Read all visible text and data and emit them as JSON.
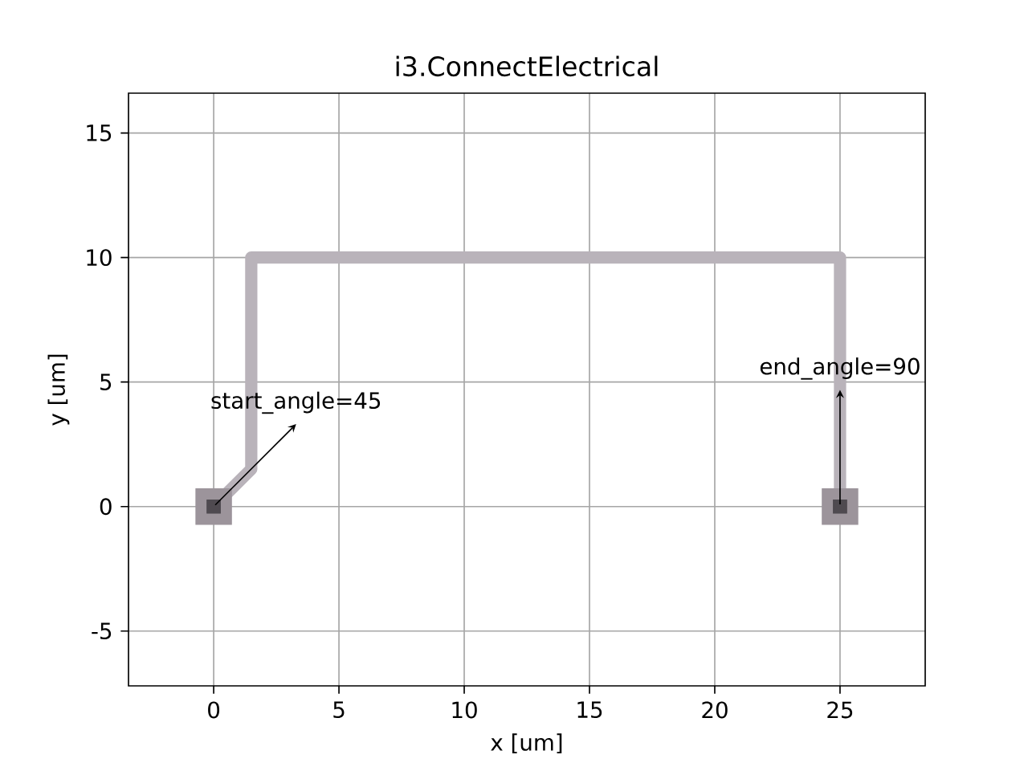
{
  "chart_data": {
    "type": "line",
    "title": "i3.ConnectElectrical",
    "xlabel": "x [um]",
    "ylabel": "y [um]",
    "series": [
      {
        "color": "#b9b3ba",
        "x": [
          0,
          1.5,
          1.5,
          25,
          25
        ],
        "values": [
          0,
          1.5,
          10,
          10,
          0
        ]
      },
      {
        "type": "scatter",
        "marker": "square",
        "color": "#9c949b",
        "x": [
          0,
          25
        ],
        "values": [
          0,
          0
        ]
      },
      {
        "type": "scatter",
        "marker": "square",
        "color": "#4f4a50",
        "x": [
          0,
          25
        ],
        "values": [
          0,
          0
        ]
      }
    ],
    "annotations": [
      {
        "text": "start_angle=45",
        "x": 0,
        "y": 0
      },
      {
        "text": "end_angle=90",
        "x": 25,
        "y": 0
      }
    ],
    "xlim": [
      -3.4,
      28.4
    ],
    "ylim": [
      -7.2,
      16.6
    ],
    "xticks": [
      0,
      5,
      10,
      15,
      20,
      25
    ],
    "yticks": [
      -5,
      0,
      5,
      10,
      15
    ],
    "grid": true
  }
}
